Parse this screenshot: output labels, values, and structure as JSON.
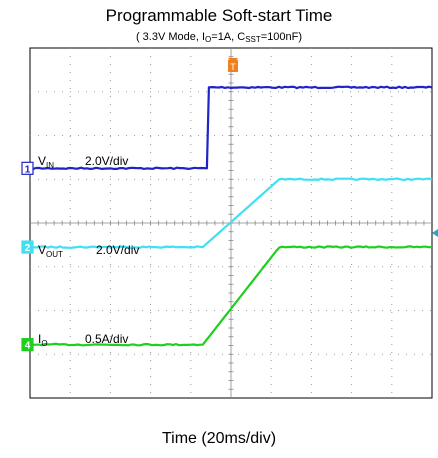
{
  "chart_data": {
    "type": "line",
    "title": "Programmable Soft-start Time",
    "subtitle_parts": [
      "( 3.3V Mode, I",
      "O",
      "=1A, C",
      "SST",
      "=100nF)"
    ],
    "xlabel": "Time (20ms/div)",
    "x_divisions": 10,
    "y_divisions": 8,
    "grid": true,
    "trigger_marker": "T",
    "series": [
      {
        "name": "VIN",
        "label_main": "V",
        "label_sub": "IN",
        "scale": "2.0V/div",
        "channel": "1",
        "color": "#1f23c8",
        "x": [
          0,
          4.4,
          4.45,
          4.55,
          10
        ],
        "y": [
          5.25,
          5.25,
          7.1,
          7.1,
          7.1
        ]
      },
      {
        "name": "VOUT",
        "label_main": "V",
        "label_sub": "OUT",
        "scale": "2.0V/div",
        "channel": "2",
        "color": "#3ee0f2",
        "x": [
          0,
          4.3,
          6.2,
          10
        ],
        "y": [
          3.45,
          3.45,
          5.0,
          5.0
        ]
      },
      {
        "name": "IO",
        "label_main": "I",
        "label_sub": "O",
        "scale": "0.5A/div",
        "channel": "4",
        "color": "#1ed01e",
        "x": [
          0,
          4.3,
          6.2,
          10
        ],
        "y": [
          1.22,
          1.22,
          3.45,
          3.45
        ]
      }
    ]
  }
}
